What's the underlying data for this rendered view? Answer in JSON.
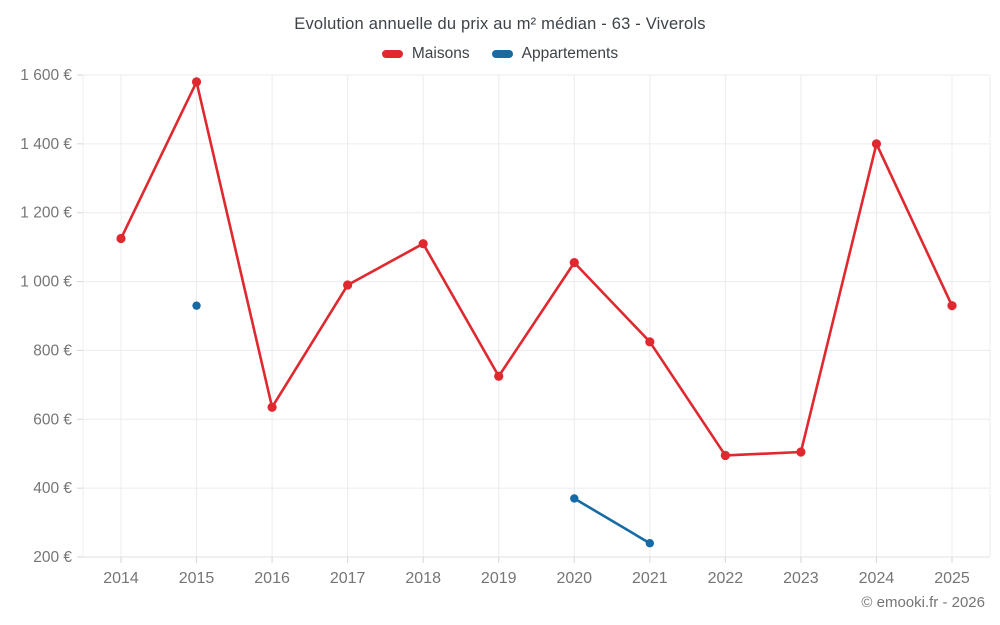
{
  "title": "Evolution annuelle du prix au m² médian - 63 - Viverols",
  "footer": "© emooki.fr - 2026",
  "colors": {
    "maisons": "#e0282f",
    "appartements": "#176ba5",
    "text_dark": "#3d4349",
    "text_muted": "#757575",
    "gridline": "#ececec",
    "axis_line": "#e2e2e2",
    "tick": "#d6d6d6",
    "background": "#ffffff"
  },
  "chart_data": {
    "type": "line",
    "title": "Evolution annuelle du prix au m² médian - 63 - Viverols",
    "categories": [
      "2014",
      "2015",
      "2016",
      "2017",
      "2018",
      "2019",
      "2020",
      "2021",
      "2022",
      "2023",
      "2024",
      "2025"
    ],
    "series": [
      {
        "name": "Maisons",
        "color": "#e0282f",
        "values": [
          1125,
          1580,
          635,
          990,
          1110,
          725,
          1055,
          825,
          495,
          505,
          1400,
          930
        ]
      },
      {
        "name": "Appartements",
        "color": "#176ba5",
        "values": [
          null,
          930,
          null,
          null,
          null,
          null,
          370,
          240,
          null,
          null,
          null,
          null
        ]
      }
    ],
    "xlabel": "",
    "ylabel": "",
    "ylim": [
      200,
      1600
    ],
    "y_ticks": [
      {
        "value": 200,
        "label": "200 €"
      },
      {
        "value": 400,
        "label": "400 €"
      },
      {
        "value": 600,
        "label": "600 €"
      },
      {
        "value": 800,
        "label": "800 €"
      },
      {
        "value": 1000,
        "label": "1 000 €"
      },
      {
        "value": 1200,
        "label": "1 200 €"
      },
      {
        "value": 1400,
        "label": "1 400 €"
      },
      {
        "value": 1600,
        "label": "1 600 €"
      }
    ],
    "grid": true,
    "legend_position": "top",
    "currency": "€"
  }
}
